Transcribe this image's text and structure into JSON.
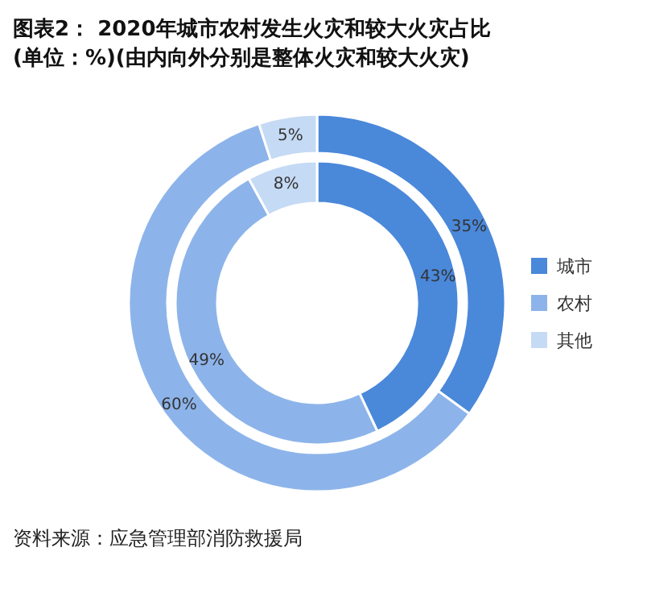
{
  "chart_data": {
    "type": "donut",
    "title": "图表2：  2020年城市农村发生火灾和较大火灾占比\n(单位：%)(由内向外分别是整体火灾和较大火灾)",
    "categories": [
      "城市",
      "农村",
      "其他"
    ],
    "colors": [
      "#4a88da",
      "#8db4ea",
      "#c5daf4"
    ],
    "series": [
      {
        "values": [
          43,
          49,
          8
        ],
        "value_labels": [
          "43%",
          "49%",
          "8%"
        ]
      },
      {
        "values": [
          35,
          60,
          5
        ],
        "value_labels": [
          "35%",
          "60%",
          "5%"
        ]
      }
    ],
    "legend": "right",
    "annotations": [
      "资料来源：应急管理部消防救援局"
    ]
  }
}
